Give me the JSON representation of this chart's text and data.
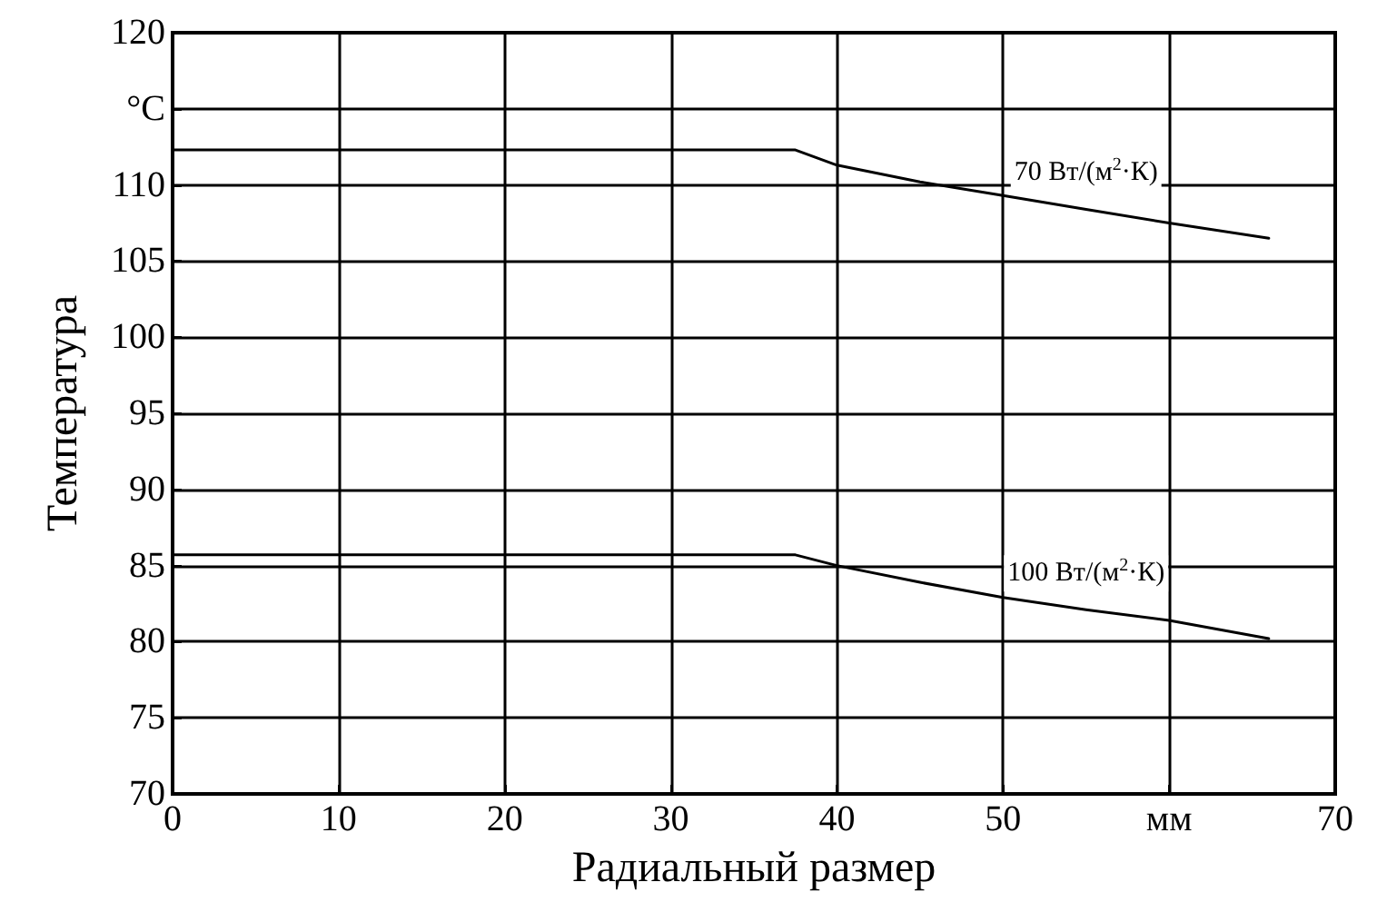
{
  "chart_data": {
    "type": "line",
    "xlabel": "Радиальный размер",
    "ylabel": "Температура",
    "xlim": [
      0,
      70
    ],
    "xticks": [
      0,
      10,
      20,
      30,
      40,
      50,
      {
        "value": 60,
        "label": "мм"
      },
      70
    ],
    "ylim": [
      70,
      120
    ],
    "yticks": [
      70,
      75,
      80,
      85,
      90,
      95,
      100,
      105,
      110,
      {
        "value": 115,
        "label": "°C"
      },
      120
    ],
    "grid": true,
    "legend": false,
    "marker": "none",
    "line_style": "solid",
    "series": [
      {
        "name": "70 Вт/(м$^{2}$·К)",
        "color": "#000000",
        "x": [
          0,
          37.5,
          40,
          45,
          50,
          55,
          60,
          66
        ],
        "values": [
          112.3,
          112.3,
          111.3,
          110.2,
          109.3,
          108.4,
          107.5,
          106.5
        ]
      },
      {
        "name": "100 Вт/(м$^{2}$·К)",
        "color": "#000000",
        "x": [
          0,
          37.5,
          40,
          45,
          50,
          55,
          60,
          66
        ],
        "values": [
          85.7,
          85.7,
          85.0,
          83.9,
          82.9,
          82.1,
          81.4,
          80.2
        ]
      }
    ]
  }
}
